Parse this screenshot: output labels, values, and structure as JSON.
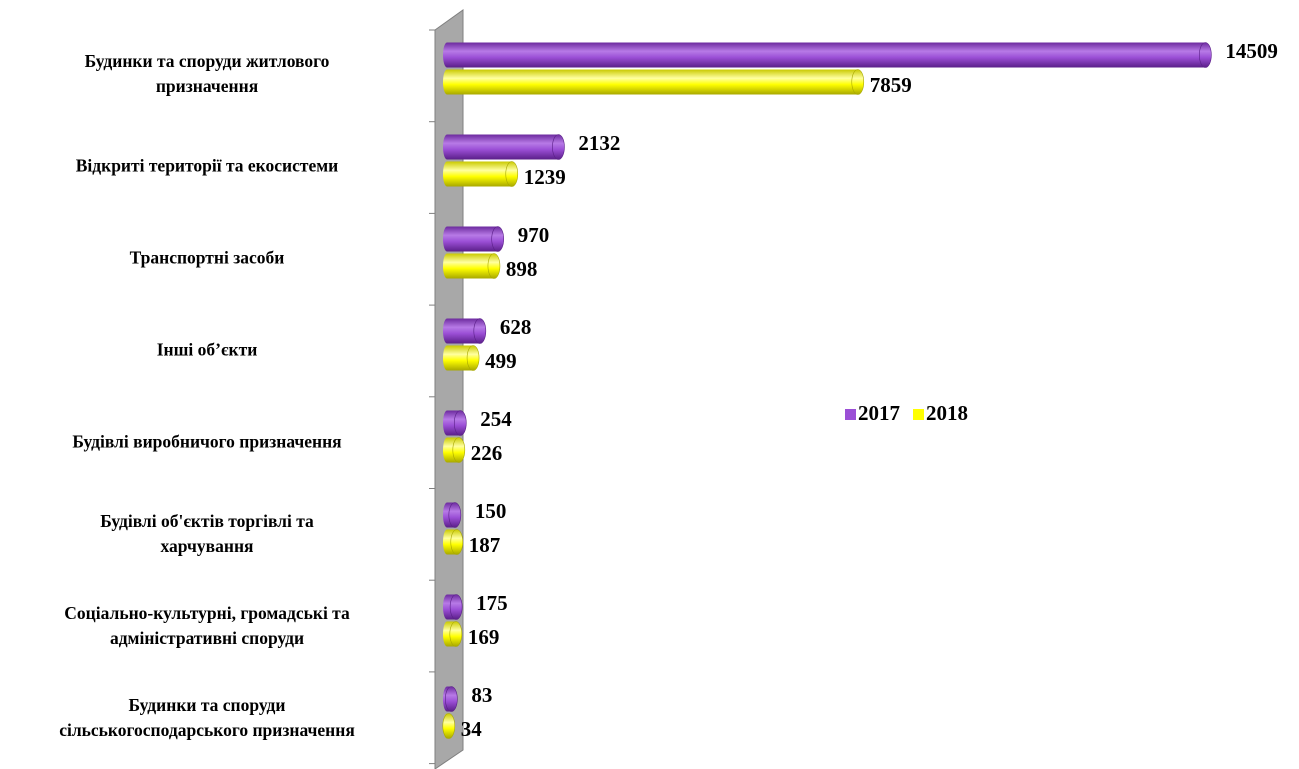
{
  "chart_data": {
    "type": "bar",
    "orientation": "horizontal",
    "style": "3d-cylinder",
    "categories": [
      "Будинки та споруди житлового\nпризначення",
      "Відкриті території та екосистеми",
      "Транспортні засоби",
      "Інші об’єкти",
      "Будівлі виробничого призначення",
      "Будівлі об'єктів торгівлі та\nхарчування",
      "Соціально-культурні, громадські та\nадміністративні споруди",
      "Будинки та споруди\nсільськогосподарського призначення"
    ],
    "series": [
      {
        "name": "2017",
        "color": "#9b4fd6",
        "values": [
          14509,
          2132,
          970,
          628,
          254,
          150,
          175,
          83
        ]
      },
      {
        "name": "2018",
        "color": "#ffff00",
        "values": [
          7859,
          1239,
          898,
          499,
          226,
          187,
          169,
          34
        ]
      }
    ],
    "xlim": [
      0,
      15000
    ],
    "legend": "right"
  }
}
